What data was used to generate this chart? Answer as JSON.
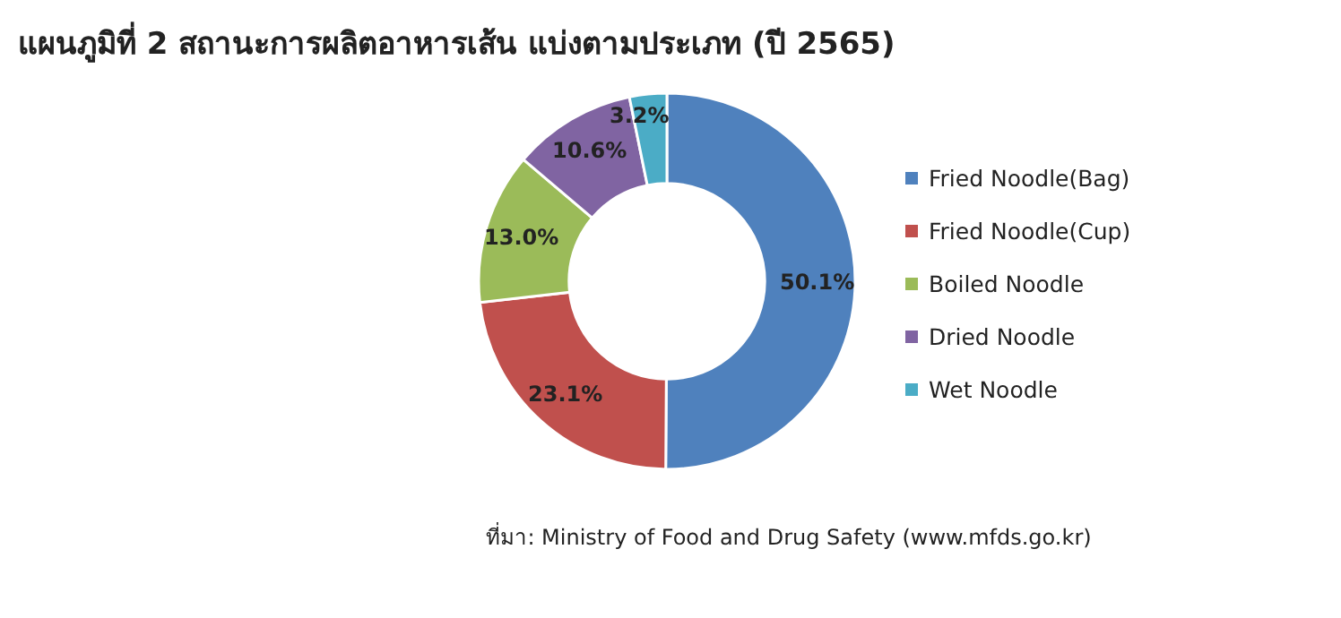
{
  "chart_data": {
    "type": "donut",
    "title": "แผนภูมิที่ 2 สถานะการผลิตอาหารเส้น แบ่งตามประเภท (ปี 2565)",
    "categories": [
      "Fried Noodle(Bag)",
      "Fried Noodle(Cup)",
      "Boiled Noodle",
      "Dried Noodle",
      "Wet Noodle"
    ],
    "values": [
      50.1,
      23.1,
      13.0,
      10.6,
      3.2
    ],
    "colors": [
      "#4f81bd",
      "#c0504d",
      "#9bbb59",
      "#8064a2",
      "#4bacc6"
    ],
    "value_labels": [
      "50.1%",
      "23.1%",
      "13.0%",
      "10.6%",
      "3.2%"
    ],
    "legend": "right",
    "annotations": [
      "ที่มา: Ministry of Food and Drug Safety (www.mfds.go.kr)"
    ]
  }
}
